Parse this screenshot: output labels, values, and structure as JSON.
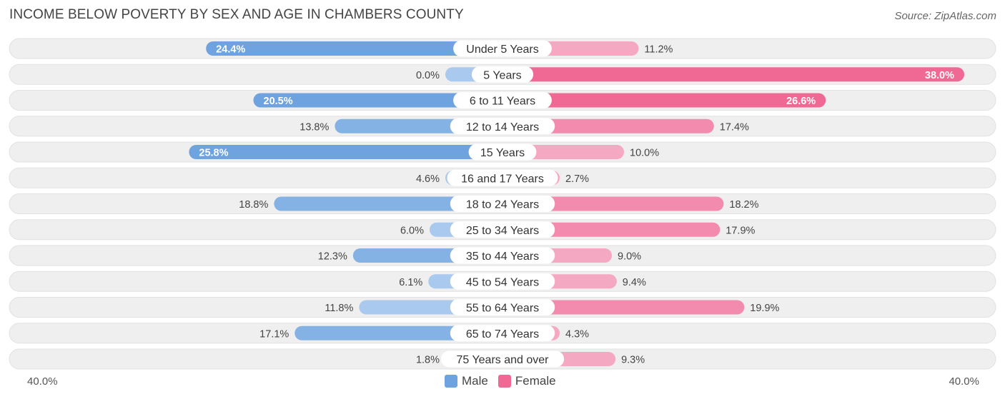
{
  "title": "INCOME BELOW POVERTY BY SEX AND AGE IN CHAMBERS COUNTY",
  "source": "Source: ZipAtlas.com",
  "colors": {
    "male_strong": "#6fa3df",
    "male_light": "#a9c9ee",
    "female_strong": "#f06894",
    "female_light": "#f5a8c2",
    "row_bg": "#efefef"
  },
  "legend": {
    "male": "Male",
    "female": "Female"
  },
  "axis": {
    "left": "40.0%",
    "right": "40.0%"
  },
  "chart_data": {
    "type": "bar",
    "orientation": "diverging-horizontal",
    "title": "INCOME BELOW POVERTY BY SEX AND AGE IN CHAMBERS COUNTY",
    "xlim": [
      -40,
      40
    ],
    "unit": "%",
    "categories": [
      "Under 5 Years",
      "5 Years",
      "6 to 11 Years",
      "12 to 14 Years",
      "15 Years",
      "16 and 17 Years",
      "18 to 24 Years",
      "25 to 34 Years",
      "35 to 44 Years",
      "45 to 54 Years",
      "55 to 64 Years",
      "65 to 74 Years",
      "75 Years and over"
    ],
    "series": [
      {
        "name": "Male",
        "values": [
          24.4,
          0.0,
          20.5,
          13.8,
          25.8,
          4.6,
          18.8,
          6.0,
          12.3,
          6.1,
          11.8,
          17.1,
          1.8
        ]
      },
      {
        "name": "Female",
        "values": [
          11.2,
          38.0,
          26.6,
          17.4,
          10.0,
          2.7,
          18.2,
          17.9,
          9.0,
          9.4,
          19.9,
          4.3,
          9.3
        ]
      }
    ],
    "labels": {
      "male": [
        "24.4%",
        "0.0%",
        "20.5%",
        "13.8%",
        "25.8%",
        "4.6%",
        "18.8%",
        "6.0%",
        "12.3%",
        "6.1%",
        "11.8%",
        "17.1%",
        "1.8%"
      ],
      "female": [
        "11.2%",
        "38.0%",
        "26.6%",
        "17.4%",
        "10.0%",
        "2.7%",
        "18.2%",
        "17.9%",
        "9.0%",
        "9.4%",
        "19.9%",
        "4.3%",
        "9.3%"
      ]
    }
  }
}
